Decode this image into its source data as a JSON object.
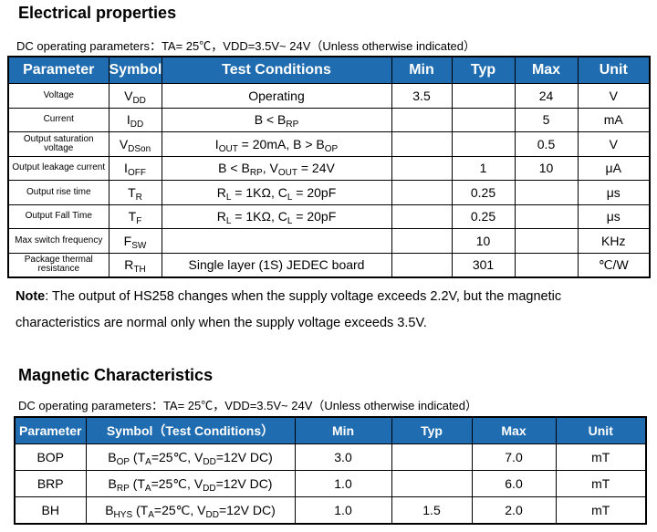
{
  "electrical": {
    "title": "Electrical properties",
    "caption": "DC operating parameters：TA= 25℃，VDD=3.5V~ 24V（Unless otherwise indicated）",
    "headers": [
      "Parameter",
      "Symbol",
      "Test Conditions",
      "Min",
      "Typ",
      "Max",
      "Unit"
    ],
    "rows": [
      {
        "param": "Voltage",
        "symbol": [
          [
            "V",
            0
          ],
          [
            "DD",
            1
          ]
        ],
        "cond": [
          [
            "Operating",
            0
          ]
        ],
        "min": "3.5",
        "typ": "",
        "max": "24",
        "unit": "V"
      },
      {
        "param": "Current",
        "symbol": [
          [
            "I",
            0
          ],
          [
            "DD",
            1
          ]
        ],
        "cond": [
          [
            "B < B",
            0
          ],
          [
            "RP",
            1
          ]
        ],
        "min": "",
        "typ": "",
        "max": "5",
        "unit": "mA"
      },
      {
        "param": "Output saturation voltage",
        "symbol": [
          [
            "V",
            0
          ],
          [
            "DSon",
            1
          ]
        ],
        "cond": [
          [
            "I",
            0
          ],
          [
            "OUT",
            1
          ],
          [
            " = 20mA, B > B",
            0
          ],
          [
            "OP",
            1
          ]
        ],
        "min": "",
        "typ": "",
        "max": "0.5",
        "unit": "V"
      },
      {
        "param": "Output leakage current",
        "symbol": [
          [
            "I",
            0
          ],
          [
            "OFF",
            1
          ]
        ],
        "cond": [
          [
            "B < B",
            0
          ],
          [
            "RP",
            1
          ],
          [
            ", V",
            0
          ],
          [
            "OUT",
            1
          ],
          [
            " = 24V",
            0
          ]
        ],
        "min": "",
        "typ": "1",
        "max": "10",
        "unit": "μA"
      },
      {
        "param": "Output rise time",
        "symbol": [
          [
            "T",
            0
          ],
          [
            "R",
            1
          ]
        ],
        "cond": [
          [
            "R",
            0
          ],
          [
            "L",
            1
          ],
          [
            " = 1KΩ, C",
            0
          ],
          [
            "L",
            1
          ],
          [
            " = 20pF",
            0
          ]
        ],
        "min": "",
        "typ": "0.25",
        "max": "",
        "unit": "μs"
      },
      {
        "param": "Output Fall Time",
        "symbol": [
          [
            "T",
            0
          ],
          [
            "F",
            1
          ]
        ],
        "cond": [
          [
            "R",
            0
          ],
          [
            "L",
            1
          ],
          [
            " = 1KΩ, C",
            0
          ],
          [
            "L",
            1
          ],
          [
            " = 20pF",
            0
          ]
        ],
        "min": "",
        "typ": "0.25",
        "max": "",
        "unit": "μs"
      },
      {
        "param": "Max switch frequency",
        "symbol": [
          [
            "F",
            0
          ],
          [
            "SW",
            1
          ]
        ],
        "cond": [],
        "min": "",
        "typ": "10",
        "max": "",
        "unit": "KHz"
      },
      {
        "param": "Package thermal resistance",
        "symbol": [
          [
            "R",
            0
          ],
          [
            "TH",
            1
          ]
        ],
        "cond": [
          [
            "Single layer (1S) JEDEC board",
            0
          ]
        ],
        "min": "",
        "typ": "301",
        "max": "",
        "unit": "℃/W"
      }
    ]
  },
  "note": {
    "label": "Note",
    "text": ": The output of HS258 changes when the supply voltage exceeds 2.2V, but the magnetic characteristics are normal only when the supply voltage exceeds 3.5V."
  },
  "magnetic": {
    "title": "Magnetic Characteristics",
    "caption": "DC operating parameters：TA= 25℃，VDD=3.5V~ 24V（Unless otherwise indicated）",
    "headers": [
      "Parameter",
      "Symbol（Test Conditions）",
      "Min",
      "Typ",
      "Max",
      "Unit"
    ],
    "rows": [
      {
        "param": "BOP",
        "cond": [
          [
            "B",
            0
          ],
          [
            "OP",
            1
          ],
          [
            " (T",
            0
          ],
          [
            "A",
            1
          ],
          [
            "=25℃, V",
            0
          ],
          [
            "DD",
            1
          ],
          [
            "=12V DC)",
            0
          ]
        ],
        "min": "3.0",
        "typ": "",
        "max": "7.0",
        "unit": "mT"
      },
      {
        "param": "BRP",
        "cond": [
          [
            "B",
            0
          ],
          [
            "RP",
            1
          ],
          [
            " (T",
            0
          ],
          [
            "A",
            1
          ],
          [
            "=25℃, V",
            0
          ],
          [
            "DD",
            1
          ],
          [
            "=12V DC)",
            0
          ]
        ],
        "min": "1.0",
        "typ": "",
        "max": "6.0",
        "unit": "mT"
      },
      {
        "param": "BH",
        "cond": [
          [
            "B",
            0
          ],
          [
            "HYS",
            1
          ],
          [
            " (T",
            0
          ],
          [
            "A",
            1
          ],
          [
            "=25℃, V",
            0
          ],
          [
            "DD",
            1
          ],
          [
            "=12V DC)",
            0
          ]
        ],
        "min": "1.0",
        "typ": "1.5",
        "max": "2.0",
        "unit": "mT"
      }
    ]
  }
}
